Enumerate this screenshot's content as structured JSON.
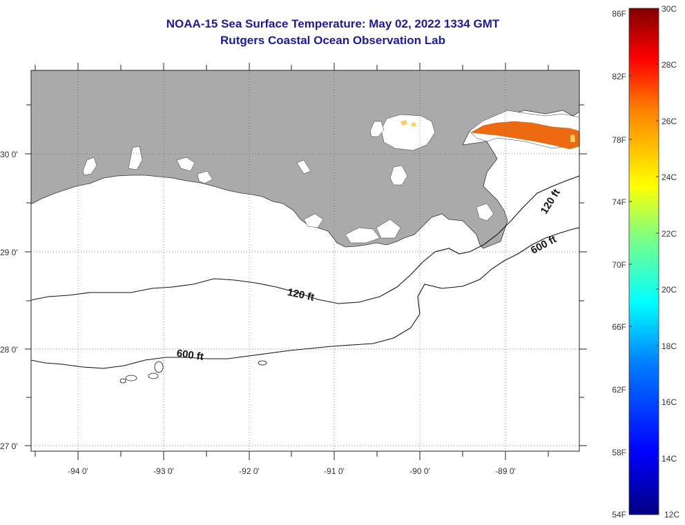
{
  "title": "NOAA-15 Sea Surface Temperature:  May 02, 2022 1334 GMT",
  "subtitle": "Rutgers Coastal Ocean Observation Lab",
  "lat_labels": [
    "30 0'",
    "29 0'",
    "28 0'",
    "27 0'"
  ],
  "lon_labels": [
    "-94 0'",
    "-93 0'",
    "-92 0'",
    "-91 0'",
    "-90 0'",
    "-89 0'"
  ],
  "contour_labels": {
    "c120_west": "120 ft",
    "c120_east": "120 ft",
    "c600_west": "600 ft",
    "c600_east": "600 ft"
  },
  "colorbar": {
    "f_labels": [
      "86F",
      "82F",
      "78F",
      "74F",
      "70F",
      "66F",
      "62F",
      "58F",
      "54F"
    ],
    "c_labels": [
      "30C",
      "28C",
      "26C",
      "24C",
      "22C",
      "20C",
      "18C",
      "16C",
      "14C",
      "12C"
    ],
    "colors": [
      "#000080",
      "#0000ff",
      "#0080ff",
      "#00ffff",
      "#80ff80",
      "#ffff00",
      "#ff8000",
      "#ff0000",
      "#800000"
    ]
  },
  "colors": {
    "land": "#aaaaaa",
    "cloud": "#ffffff",
    "sst_warm": "#ee6a10",
    "title": "#1a1aa6"
  }
}
